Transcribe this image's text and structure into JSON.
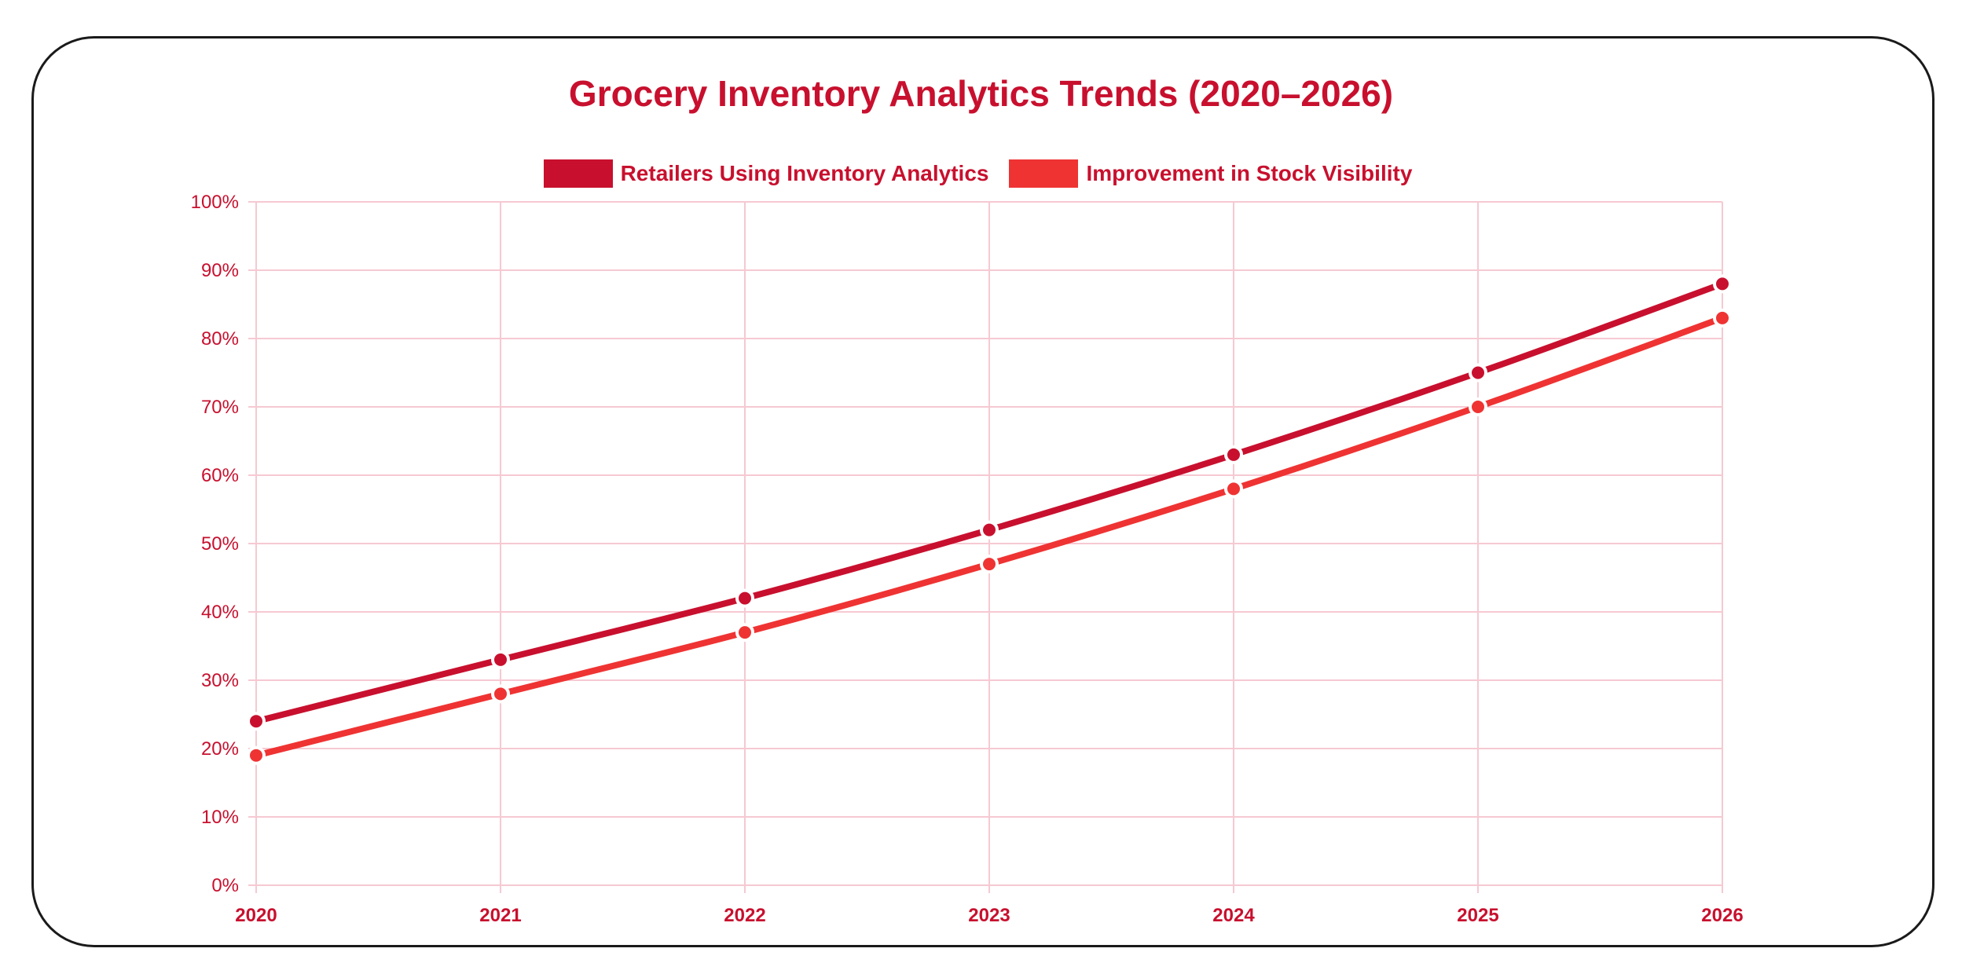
{
  "chart_data": {
    "type": "line",
    "title": "Grocery Inventory Analytics Trends (2020–2026)",
    "xlabel": "",
    "ylabel": "",
    "categories": [
      "2020",
      "2021",
      "2022",
      "2023",
      "2024",
      "2025",
      "2026"
    ],
    "ylim": [
      0,
      100
    ],
    "yticks": [
      "0%",
      "10%",
      "20%",
      "30%",
      "40%",
      "50%",
      "60%",
      "70%",
      "80%",
      "90%",
      "100%"
    ],
    "grid": true,
    "legend_position": "top-center",
    "series": [
      {
        "name": "Retailers Using Inventory Analytics",
        "color": "#c8102e",
        "values": [
          24,
          33,
          42,
          52,
          63,
          75,
          88
        ]
      },
      {
        "name": "Improvement in Stock Visibility",
        "color": "#ef3333",
        "values": [
          19,
          28,
          37,
          47,
          58,
          70,
          83
        ]
      }
    ]
  },
  "colors": {
    "grid": "#f6c9d2",
    "text": "#c8102e"
  }
}
